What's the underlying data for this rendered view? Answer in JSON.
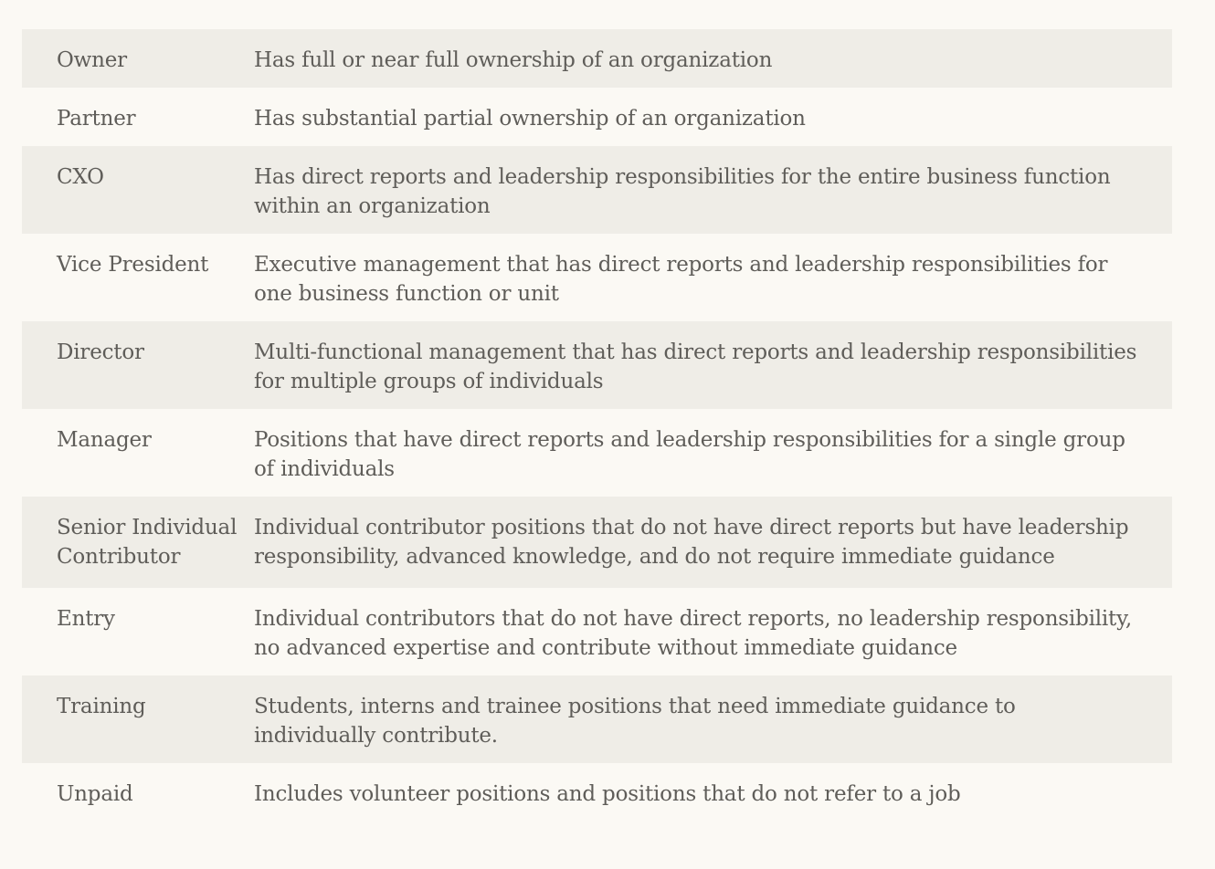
{
  "rows": [
    {
      "level": "Owner",
      "description": "Has full or near full ownership of an organization"
    },
    {
      "level": "Partner",
      "description": "Has substantial partial ownership of an organization"
    },
    {
      "level": "CXO",
      "description": "Has direct reports and leadership responsibilities for the entire business function within an organization"
    },
    {
      "level": "Vice President",
      "description": "Executive management that has direct reports and leadership responsibilities for one business function or unit"
    },
    {
      "level": "Director",
      "description": "Multi-functional management that has direct reports and leadership responsibilities for multiple groups of individuals"
    },
    {
      "level": "Manager",
      "description": "Positions that have direct reports and leadership responsibilities for a single group of individuals"
    },
    {
      "level": "Senior Individual Contributor",
      "description": "Individual contributor positions that do not have direct reports but have leadership responsibility, advanced knowledge, and do not require immediate guidance"
    },
    {
      "level": "Entry",
      "description": "Individual contributors that do not have direct reports, no leadership responsibility, no advanced expertise and contribute without immediate guidance"
    },
    {
      "level": "Training",
      "description": "Students, interns and trainee positions that need immediate guidance to individually contribute."
    },
    {
      "level": "Unpaid",
      "description": "Includes volunteer positions and positions that do not refer to a job"
    }
  ]
}
